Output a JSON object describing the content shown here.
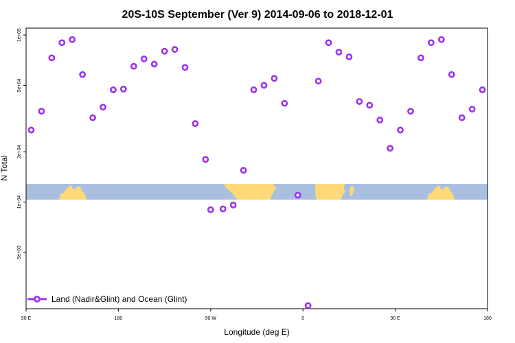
{
  "chart_data": {
    "type": "scatter",
    "title": "20S-10S September (Ver 9)   2014-09-06 to 2018-12-01",
    "xlabel": "Longitude (deg E)",
    "ylabel": "N Total",
    "x_ticks": [
      {
        "value": 90,
        "label": "90 E"
      },
      {
        "value": 180,
        "label": "180"
      },
      {
        "value": 270,
        "label": "90 W"
      },
      {
        "value": 360,
        "label": "0"
      },
      {
        "value": 450,
        "label": "90 E"
      },
      {
        "value": 540,
        "label": "180"
      }
    ],
    "y_ticks": [
      {
        "value": 5000,
        "label": "5e+03"
      },
      {
        "value": 10000,
        "label": "1e+04"
      },
      {
        "value": 20000,
        "label": "2e+04"
      },
      {
        "value": 50000,
        "label": "5e+04"
      },
      {
        "value": 100000,
        "label": "1e+05"
      }
    ],
    "xlim": [
      90,
      540
    ],
    "ylim": [
      2300,
      110000
    ],
    "y_scale": "log",
    "grid": false,
    "legend_position": "bottom-left",
    "colors": {
      "series": "#9b30f0",
      "land": "#ffd978",
      "ocean": "#a8bfe0"
    },
    "series": [
      {
        "name": "Land (Nadir&Glint) and Ocean (Glint)",
        "color": "#9b30f0",
        "x": [
          95,
          105,
          115,
          125,
          135,
          145,
          155,
          165,
          175,
          185,
          195,
          205,
          215,
          225,
          235,
          245,
          255,
          265,
          270,
          282,
          292,
          302,
          312,
          322,
          332,
          342,
          355,
          365,
          375,
          385,
          395,
          405,
          415,
          425,
          435,
          445,
          455,
          465,
          475,
          485,
          495,
          505,
          515,
          525,
          535
        ],
        "y": [
          27000,
          35000,
          73000,
          90000,
          94000,
          58000,
          32000,
          37000,
          47000,
          47500,
          65000,
          72000,
          67000,
          80000,
          82000,
          64000,
          29500,
          18000,
          9000,
          9100,
          9600,
          15500,
          47000,
          50000,
          55000,
          39000,
          11000,
          2400,
          53000,
          90000,
          79000,
          74000,
          40000,
          38000,
          31000,
          21000,
          27000,
          35000,
          73000,
          90000,
          94000,
          58000,
          32000,
          36000,
          47000
        ]
      }
    ]
  }
}
